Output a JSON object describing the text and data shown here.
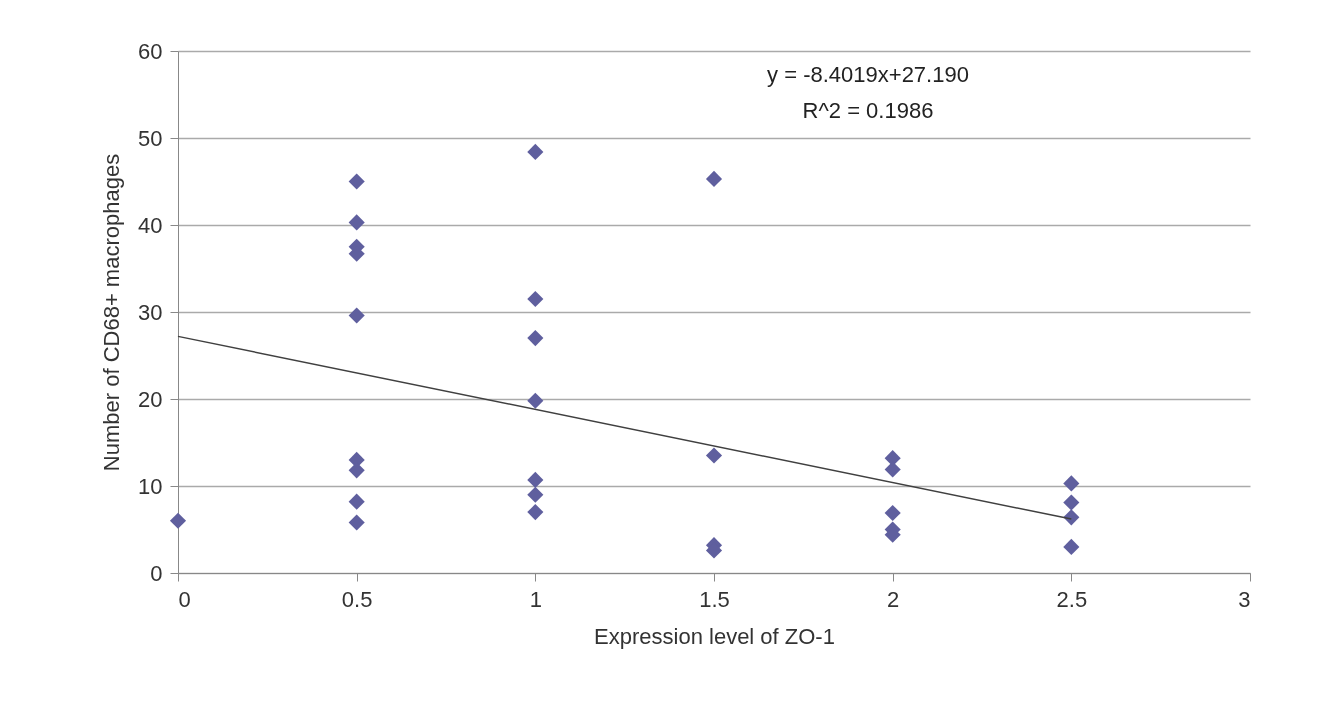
{
  "chart_data": {
    "type": "scatter",
    "xlabel": "Expression level of ZO-1",
    "ylabel": "Number of CD68+ macrophages",
    "annotations": [
      "y = -8.4019x+27.190",
      "R^2 = 0.1986"
    ],
    "series": [
      {
        "color": "#5f5f9e",
        "x": [
          0,
          0.5,
          0.5,
          0.5,
          0.5,
          0.5,
          0.5,
          0.5,
          0.5,
          0.5,
          1,
          1,
          1,
          1,
          1,
          1,
          1,
          1.5,
          1.5,
          1.5,
          1.5,
          2,
          2,
          2,
          2,
          2,
          2.5,
          2.5,
          2.5,
          2.5
        ],
        "values": [
          6,
          45,
          40.3,
          37.5,
          36.7,
          29.6,
          13,
          11.8,
          8.2,
          5.8,
          48.4,
          31.5,
          27,
          19.8,
          10.7,
          9,
          7,
          45.3,
          13.5,
          3.2,
          2.6,
          13.2,
          11.9,
          6.9,
          5,
          4.4,
          10.3,
          8.1,
          6.4,
          3
        ]
      },
      {
        "type": "line",
        "color": "#404040",
        "marker": "none",
        "x": [
          0,
          2.5
        ],
        "values": [
          27.2,
          6.2
        ]
      }
    ],
    "xlim": [
      0,
      3
    ],
    "xticks": [
      0,
      0.5,
      1,
      1.5,
      2,
      2.5,
      3
    ],
    "ylim": [
      0,
      60
    ],
    "yticks": [
      0,
      10,
      20,
      30,
      40,
      50,
      60
    ],
    "grid": "y",
    "marker": "diamond"
  }
}
